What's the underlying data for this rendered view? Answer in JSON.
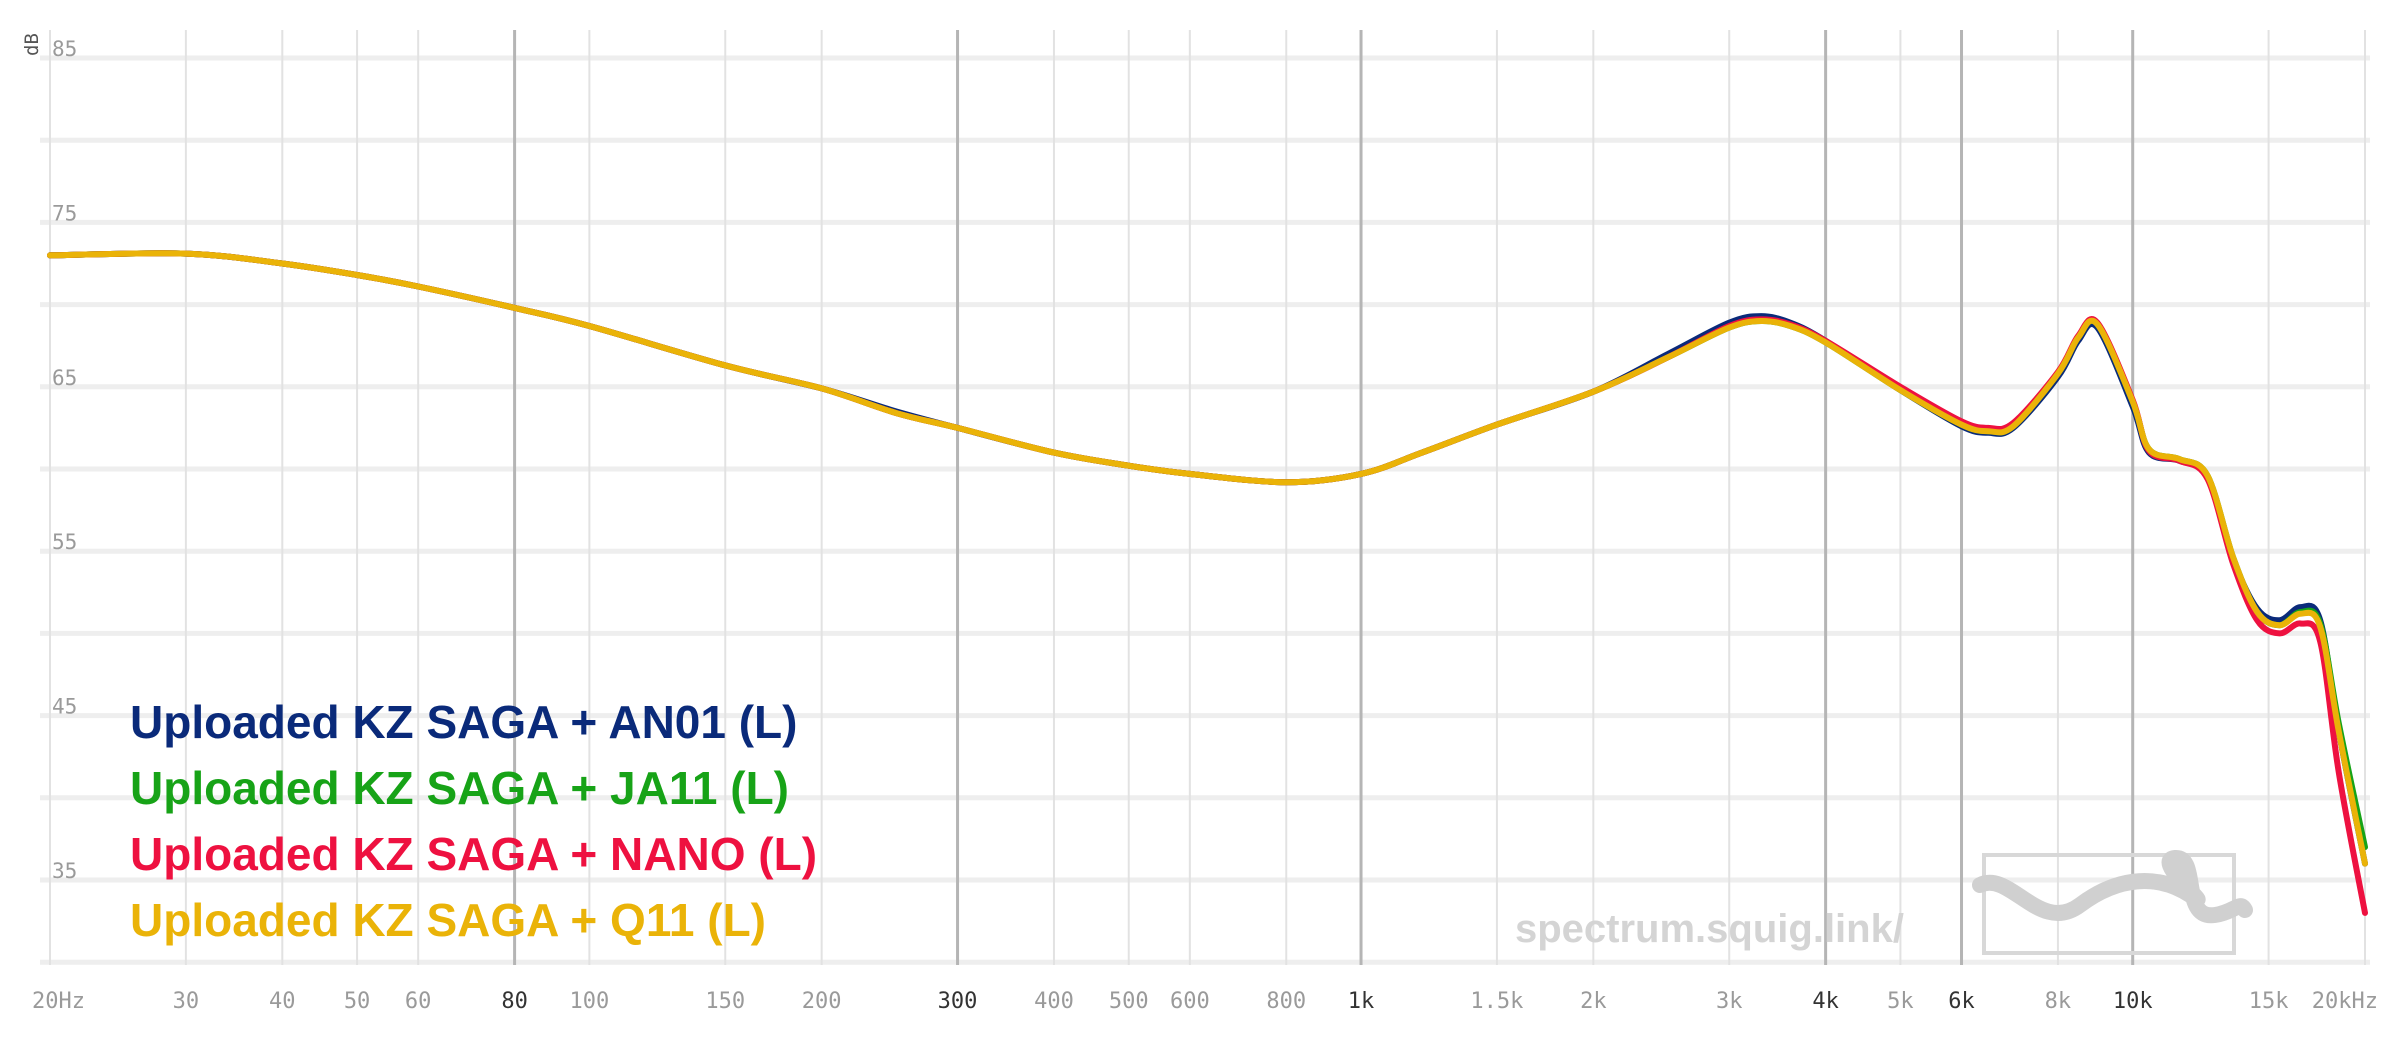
{
  "chart_data": {
    "type": "line",
    "title": "",
    "ylabel": "dB",
    "xlabel": "",
    "x_scale": "log",
    "xlim": [
      20,
      20000
    ],
    "ylim": [
      30,
      86
    ],
    "grid": true,
    "legend_position": "bottom-left",
    "y_ticks": [
      {
        "value": 85,
        "label": "85"
      },
      {
        "value": 75,
        "label": "75"
      },
      {
        "value": 65,
        "label": "65"
      },
      {
        "value": 55,
        "label": "55"
      },
      {
        "value": 45,
        "label": "45"
      },
      {
        "value": 35,
        "label": "35"
      }
    ],
    "x_ticks": [
      {
        "value": 20,
        "label": "20Hz",
        "major": false
      },
      {
        "value": 30,
        "label": "30",
        "major": false
      },
      {
        "value": 40,
        "label": "40",
        "major": false
      },
      {
        "value": 50,
        "label": "50",
        "major": false
      },
      {
        "value": 60,
        "label": "60",
        "major": false
      },
      {
        "value": 80,
        "label": "80",
        "major": true
      },
      {
        "value": 100,
        "label": "100",
        "major": false
      },
      {
        "value": 150,
        "label": "150",
        "major": false
      },
      {
        "value": 200,
        "label": "200",
        "major": false
      },
      {
        "value": 300,
        "label": "300",
        "major": true
      },
      {
        "value": 400,
        "label": "400",
        "major": false
      },
      {
        "value": 500,
        "label": "500",
        "major": false
      },
      {
        "value": 600,
        "label": "600",
        "major": false
      },
      {
        "value": 800,
        "label": "800",
        "major": false
      },
      {
        "value": 1000,
        "label": "1k",
        "major": true
      },
      {
        "value": 1500,
        "label": "1.5k",
        "major": false
      },
      {
        "value": 2000,
        "label": "2k",
        "major": false
      },
      {
        "value": 3000,
        "label": "3k",
        "major": false
      },
      {
        "value": 4000,
        "label": "4k",
        "major": true
      },
      {
        "value": 5000,
        "label": "5k",
        "major": false
      },
      {
        "value": 6000,
        "label": "6k",
        "major": true
      },
      {
        "value": 8000,
        "label": "8k",
        "major": false
      },
      {
        "value": 10000,
        "label": "10k",
        "major": true
      },
      {
        "value": 15000,
        "label": "15k",
        "major": false
      },
      {
        "value": 20000,
        "label": "20kHz",
        "major": false
      }
    ],
    "x": [
      20,
      30,
      40,
      50,
      60,
      80,
      100,
      150,
      200,
      250,
      300,
      400,
      500,
      600,
      800,
      1000,
      1200,
      1500,
      2000,
      2500,
      3000,
      3300,
      3600,
      4000,
      5000,
      6000,
      6500,
      7000,
      8000,
      8500,
      9000,
      10000,
      10500,
      11500,
      12500,
      13500,
      14500,
      15500,
      16500,
      17500,
      18500,
      20000
    ],
    "series": [
      {
        "name": "Uploaded KZ SAGA + AN01 (L)",
        "color": "#0a2a7a",
        "values": [
          73.0,
          73.1,
          72.5,
          71.8,
          71.1,
          69.8,
          68.7,
          66.3,
          64.9,
          63.5,
          62.5,
          61.0,
          60.2,
          59.7,
          59.2,
          59.7,
          61.0,
          62.7,
          64.7,
          67.0,
          68.9,
          69.3,
          68.9,
          67.8,
          64.8,
          62.6,
          62.2,
          62.5,
          65.6,
          67.8,
          68.6,
          63.8,
          61.0,
          60.5,
          59.5,
          54.5,
          51.5,
          50.8,
          51.6,
          50.8,
          44.0,
          36.0
        ]
      },
      {
        "name": "Uploaded KZ SAGA + JA11 (L)",
        "color": "#17a317",
        "values": [
          73.0,
          73.1,
          72.5,
          71.8,
          71.1,
          69.8,
          68.7,
          66.3,
          64.9,
          63.4,
          62.5,
          61.0,
          60.2,
          59.7,
          59.2,
          59.7,
          61.0,
          62.7,
          64.7,
          66.8,
          68.6,
          69.0,
          68.7,
          67.7,
          64.8,
          62.7,
          62.3,
          62.6,
          65.8,
          68.0,
          68.8,
          64.1,
          61.2,
          60.6,
          59.6,
          54.6,
          51.3,
          50.5,
          51.3,
          50.6,
          44.5,
          37.0
        ]
      },
      {
        "name": "Uploaded KZ SAGA + NANO (L)",
        "color": "#ee1140",
        "values": [
          73.0,
          73.1,
          72.5,
          71.8,
          71.1,
          69.8,
          68.7,
          66.3,
          64.9,
          63.4,
          62.5,
          61.0,
          60.2,
          59.7,
          59.2,
          59.7,
          61.0,
          62.7,
          64.7,
          66.8,
          68.7,
          69.1,
          68.8,
          67.8,
          65.0,
          62.9,
          62.5,
          62.8,
          65.9,
          68.1,
          68.9,
          64.2,
          61.1,
          60.5,
          59.4,
          54.2,
          50.8,
          50.0,
          50.6,
          49.5,
          41.5,
          33.0
        ]
      },
      {
        "name": "Uploaded KZ SAGA + Q11 (L)",
        "color": "#eab308",
        "values": [
          73.0,
          73.1,
          72.5,
          71.8,
          71.1,
          69.8,
          68.7,
          66.3,
          64.9,
          63.4,
          62.5,
          61.0,
          60.2,
          59.7,
          59.2,
          59.7,
          61.0,
          62.7,
          64.7,
          66.8,
          68.6,
          69.0,
          68.7,
          67.7,
          64.8,
          62.7,
          62.3,
          62.6,
          65.8,
          68.0,
          68.8,
          64.1,
          61.2,
          60.6,
          59.6,
          54.6,
          51.3,
          50.5,
          51.2,
          50.4,
          44.0,
          36.0
        ]
      }
    ],
    "watermark": "spectrum.squig.link/"
  }
}
